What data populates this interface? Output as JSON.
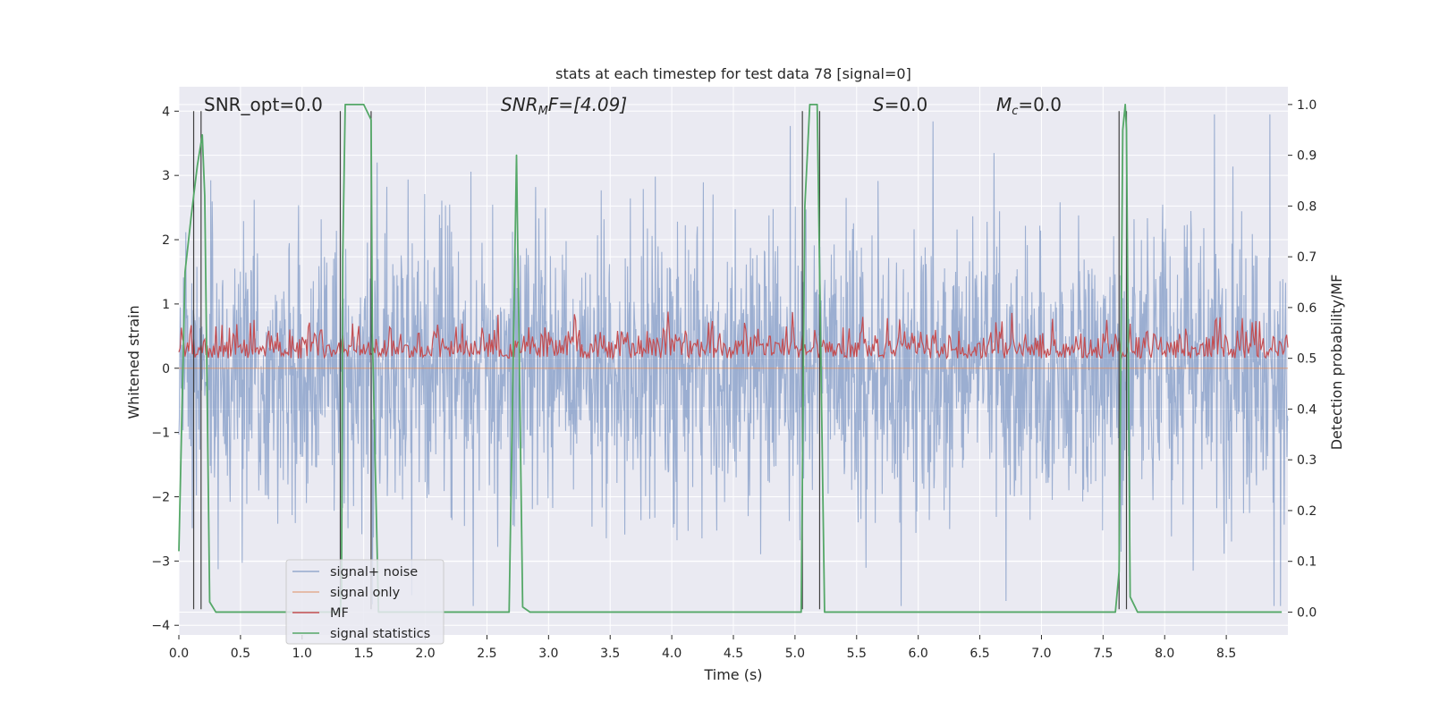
{
  "chart_data": {
    "type": "line",
    "title": "stats at each timestep for test data 78 [signal=0]",
    "xlabel": "Time (s)",
    "ylabel_left": "Whitened strain",
    "ylabel_right": "Detection probability/MF",
    "xlim": [
      0.0,
      9.0
    ],
    "ylim_left": [
      -4.15,
      4.38
    ],
    "ylim_right": [
      -0.045,
      1.035
    ],
    "x_ticks": [
      0.0,
      0.5,
      1.0,
      1.5,
      2.0,
      2.5,
      3.0,
      3.5,
      4.0,
      4.5,
      5.0,
      5.5,
      6.0,
      6.5,
      7.0,
      7.5,
      8.0,
      8.5
    ],
    "x_tick_labels": [
      "0.0",
      "0.5",
      "1.0",
      "1.5",
      "2.0",
      "2.5",
      "3.0",
      "3.5",
      "4.0",
      "4.5",
      "5.0",
      "5.5",
      "6.0",
      "6.5",
      "7.0",
      "7.5",
      "8.0",
      "8.5"
    ],
    "y_ticks_left": [
      -4,
      -3,
      -2,
      -1,
      0,
      1,
      2,
      3,
      4
    ],
    "y_tick_labels_left": [
      "−4",
      "−3",
      "−2",
      "−1",
      "0",
      "1",
      "2",
      "3",
      "4"
    ],
    "y_ticks_right": [
      0.0,
      0.1,
      0.2,
      0.3,
      0.4,
      0.5,
      0.6,
      0.7,
      0.8,
      0.9,
      1.0
    ],
    "y_tick_labels_right": [
      "0.0",
      "0.1",
      "0.2",
      "0.3",
      "0.4",
      "0.5",
      "0.6",
      "0.7",
      "0.8",
      "0.9",
      "1.0"
    ],
    "grid": true,
    "legend_position": "lower-left",
    "annotations": {
      "snr_opt": "SNR_opt=0.0",
      "snr_mf_sym": "SNR",
      "snr_mf_sub": "M",
      "snr_mf_rest": "F=[4.09]",
      "s_sym": "S",
      "s_rest": "=0.0",
      "mc_sym": "M",
      "mc_sub": "c",
      "mc_rest": "=0.0"
    },
    "series": [
      {
        "name": "signal+ noise",
        "axis": "left",
        "color": "#4c72b0",
        "description_level": "noise envelope about ±1.5, peaks near 3.9 and −3.7"
      },
      {
        "name": "signal only",
        "axis": "left",
        "color": "#dd8452",
        "values_const": 0.0
      },
      {
        "name": "MF",
        "axis": "right",
        "color": "#c44e52",
        "band": [
          0.5,
          0.59
        ]
      },
      {
        "name": "signal statistics",
        "axis": "right",
        "color": "#55a868",
        "x": [
          0.0,
          0.05,
          0.1,
          0.15,
          0.19,
          0.21,
          0.25,
          0.3,
          0.6,
          1.0,
          1.25,
          1.31,
          1.32,
          1.33,
          1.35,
          1.4,
          1.5,
          1.56,
          1.57,
          1.62,
          1.7,
          2.0,
          2.5,
          2.68,
          2.74,
          2.79,
          2.85,
          3.0,
          4.0,
          5.05,
          5.08,
          5.12,
          5.18,
          5.24,
          5.5,
          6.0,
          7.0,
          7.6,
          7.63,
          7.66,
          7.68,
          7.69,
          7.72,
          7.78,
          8.0,
          8.95
        ],
        "y": [
          0.12,
          0.67,
          0.78,
          0.88,
          0.94,
          0.82,
          0.02,
          0.0,
          0.0,
          0.0,
          0.0,
          0.0,
          0.05,
          0.7,
          1.0,
          1.0,
          1.0,
          0.97,
          0.55,
          0.0,
          0.0,
          0.0,
          0.0,
          0.0,
          0.9,
          0.01,
          0.0,
          0.0,
          0.0,
          0.0,
          0.8,
          1.0,
          1.0,
          0.0,
          0.0,
          0.0,
          0.0,
          0.0,
          0.08,
          0.95,
          1.0,
          0.95,
          0.03,
          0.0,
          0.0,
          0.0
        ]
      }
    ],
    "vertical_lines": [
      0.12,
      0.18,
      1.31,
      1.56,
      5.06,
      5.2,
      7.63,
      7.69
    ],
    "vertical_lines_color": "#404040"
  },
  "legend": {
    "item0": "signal+ noise",
    "item1": "signal only",
    "item2": "MF",
    "item3": "signal statistics"
  }
}
